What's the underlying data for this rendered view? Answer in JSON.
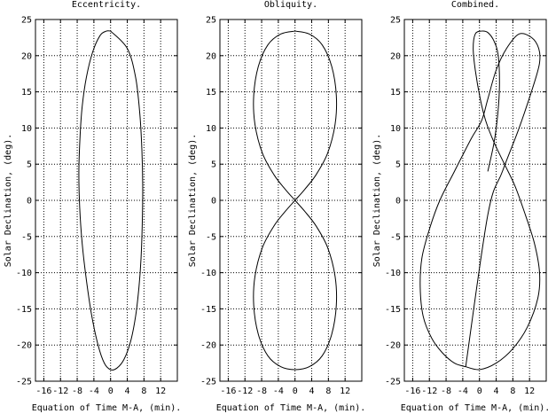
{
  "chart_data": [
    {
      "type": "line",
      "title": "Eccentricity.",
      "xlabel": "Equation of Time M-A, (min).",
      "ylabel": "Solar Declination, (deg).",
      "xlim": [
        -18,
        16
      ],
      "ylim": [
        -25,
        25
      ],
      "xticks": [
        -16,
        -12,
        -8,
        -4,
        0,
        4,
        8,
        12
      ],
      "yticks": [
        -25,
        -20,
        -15,
        -10,
        -5,
        0,
        5,
        10,
        15,
        20,
        25
      ],
      "grid": true,
      "series": [
        {
          "x": [
            0,
            4,
            6,
            7,
            7.5,
            7.7,
            7.6,
            7.3,
            6.8,
            6.0,
            4.8,
            3.2,
            1.5,
            0,
            -1.5,
            -3,
            -4.5,
            -5.8,
            -6.8,
            -7.4,
            -7.6,
            -7.3,
            -6.8,
            -5.8,
            -4.3,
            -2.5,
            -1,
            0
          ],
          "y": [
            23.4,
            21,
            17,
            12,
            7,
            2,
            -3,
            -8,
            -12,
            -16,
            -19.5,
            -22,
            -23.2,
            -23.4,
            -22.5,
            -20,
            -16,
            -11,
            -6,
            -1,
            4,
            9,
            13,
            17,
            20.5,
            22.8,
            23.4,
            23.4
          ]
        }
      ]
    },
    {
      "type": "line",
      "title": "Obliquity.",
      "xlabel": "Equation of Time M-A, (min).",
      "ylabel": "Solar Declination, (deg).",
      "xlim": [
        -18,
        16
      ],
      "ylim": [
        -25,
        25
      ],
      "xticks": [
        -16,
        -12,
        -8,
        -4,
        0,
        4,
        8,
        12
      ],
      "yticks": [
        -25,
        -20,
        -15,
        -10,
        -5,
        0,
        5,
        10,
        15,
        20,
        25
      ],
      "grid": true,
      "series": [
        {
          "x": [
            0,
            3.4,
            6.5,
            8.8,
            9.9,
            9.6,
            7.8,
            5,
            2.3,
            0,
            -2.3,
            -5,
            -7.8,
            -9.6,
            -9.9,
            -8.8,
            -6.5,
            -3.4,
            0,
            3.4,
            6.5,
            8.8,
            9.9,
            9.6,
            7.8,
            5,
            2.3,
            0,
            -2.3,
            -5,
            -7.8,
            -9.6,
            -9.9,
            -8.8,
            -6.5,
            -3.4,
            0
          ],
          "y": [
            23.4,
            23,
            21.5,
            18.5,
            14.5,
            10.5,
            6.5,
            3.5,
            1.5,
            0,
            -1.5,
            -3.5,
            -6.5,
            -10.5,
            -14.5,
            -18.5,
            -21.5,
            -23,
            -23.4,
            -23,
            -21.5,
            -18.5,
            -14.5,
            -10.5,
            -6.5,
            -3.5,
            -1.5,
            0,
            1.5,
            3.5,
            6.5,
            10.5,
            14.5,
            18.5,
            21.5,
            23,
            23.4
          ]
        }
      ]
    },
    {
      "type": "line",
      "title": "Combined.",
      "xlabel": "Equation of Time M-A, (min).",
      "ylabel": "Solar Declination, (deg).",
      "xlim": [
        -18,
        16
      ],
      "ylim": [
        -25,
        25
      ],
      "xticks": [
        -16,
        -12,
        -8,
        -4,
        0,
        4,
        8,
        12
      ],
      "yticks": [
        -25,
        -20,
        -15,
        -10,
        -5,
        0,
        5,
        10,
        15,
        20,
        25
      ],
      "grid": true,
      "series": [
        {
          "x": [
            -3.3,
            -6,
            -9,
            -11.5,
            -13.5,
            -14.2,
            -13.8,
            -12,
            -9.5,
            -6,
            -2,
            0.5,
            2,
            4,
            6.5,
            9.5,
            12.5,
            14.2,
            14.4,
            13,
            9.5,
            5.5,
            2,
            -3.3
          ],
          "y": [
            -23,
            -22.5,
            -21,
            -19,
            -16,
            -12,
            -8,
            -4,
            0,
            4,
            8.5,
            11,
            14,
            18,
            21,
            23,
            22.5,
            21,
            19,
            16,
            10,
            4,
            -2,
            -23
          ]
        },
        {
          "x": [
            -3.3,
            0,
            4,
            8,
            11.5,
            14,
            14.4,
            13.2,
            11,
            8.5,
            6,
            3.5,
            1.5,
            0.2,
            -1,
            -1.5,
            -1,
            0.5,
            2,
            3.5,
            4.5,
            4.8,
            4.4,
            3.5,
            2
          ],
          "y": [
            -23,
            -23.4,
            -22.5,
            -20.5,
            -17.5,
            -13.5,
            -10,
            -6,
            -2,
            2,
            5,
            8,
            11,
            14,
            18,
            21,
            23,
            23.4,
            23.2,
            22,
            20,
            16,
            12,
            8,
            4
          ]
        }
      ]
    }
  ]
}
